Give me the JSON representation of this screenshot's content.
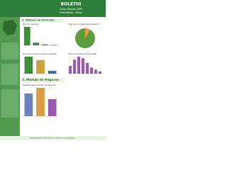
{
  "header": {
    "title": "BOLETIN",
    "subtitle": "Censo General 2005",
    "place": "Perfil Básico - Libres"
  },
  "sections": [
    {
      "title": "1. Módulo de Vivienda"
    },
    {
      "title": "2. Módulo de Hogares"
    }
  ],
  "charts": [
    {
      "type": "bar",
      "title": "Tipo de vivienda",
      "values": [
        82,
        12,
        4,
        2
      ],
      "color": "#3f8f3a"
    },
    {
      "type": "pie",
      "title": "Hogares con actividad económica",
      "values": [
        8,
        92
      ],
      "colors": [
        "#e59a3c",
        "#5c9c3c"
      ]
    },
    {
      "type": "bar",
      "title": "Servicios con que cuenta la vivienda",
      "values": [
        88,
        70,
        15
      ],
      "colors": [
        "#3f8f3a",
        "#c8a23a",
        "#3a6fb0"
      ]
    },
    {
      "type": "bar",
      "title": "Número de personas por hogar",
      "values": [
        10,
        18,
        22,
        20,
        14,
        8,
        5,
        3
      ],
      "color": "#9a5ab0"
    },
    {
      "type": "bar",
      "title": "Hogares según número de personas",
      "values": [
        20,
        25,
        15
      ],
      "colors": [
        "#6a7fc0",
        "#d8a040",
        "#9a5ab0"
      ]
    }
  ],
  "footer": "Departamento Administrativo Nacional de Estadística"
}
